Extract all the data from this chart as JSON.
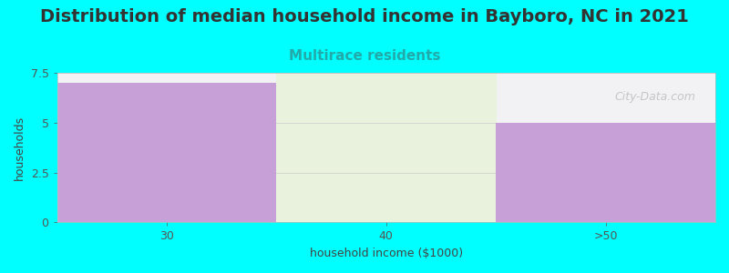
{
  "title": "Distribution of median household income in Bayboro, NC in 2021",
  "subtitle": "Multirace residents",
  "xlabel": "household income ($1000)",
  "ylabel": "households",
  "background_color": "#00FFFF",
  "plot_bg_color": "#F2F2F5",
  "bar_categories": [
    "30",
    "40",
    ">50"
  ],
  "bar_values": [
    7.0,
    0.0,
    5.0
  ],
  "bar_color": "#C8A0D8",
  "middle_col_color": "#E8F2DC",
  "ylim": [
    0,
    7.5
  ],
  "yticks": [
    0,
    2.5,
    5,
    7.5
  ],
  "title_fontsize": 14,
  "subtitle_fontsize": 11,
  "subtitle_color": "#22AAAA",
  "axis_label_fontsize": 9,
  "tick_fontsize": 9,
  "watermark": "City-Data.com"
}
